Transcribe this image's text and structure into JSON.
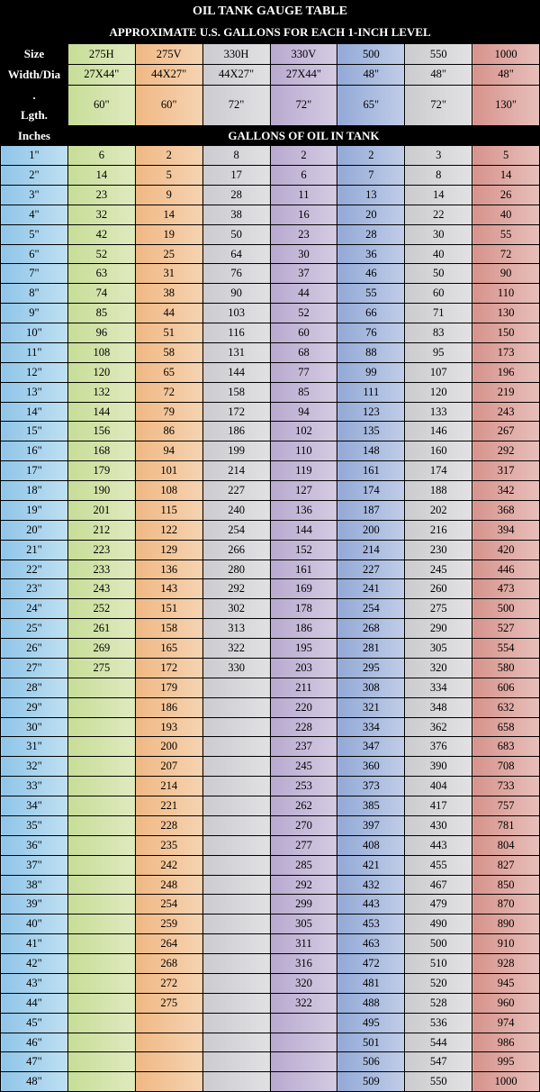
{
  "title": "OIL TANK GAUGE TABLE",
  "subtitle": "APPROXIMATE U.S. GALLONS FOR EACH 1-INCH LEVEL",
  "mid_header": "GALLONS OF OIL IN TANK",
  "row_headers": {
    "size": "Size",
    "width": "Width/Dia",
    "dot": ".",
    "length": "Lgth.",
    "inches": "Inches"
  },
  "columns": [
    {
      "name": "275H",
      "width": "27X44\"",
      "length": "60\"",
      "color_class": "c1"
    },
    {
      "name": "275V",
      "width": "44X27\"",
      "length": "60\"",
      "color_class": "c2"
    },
    {
      "name": "330H",
      "width": "44X27\"",
      "length": "72\"",
      "color_class": "c3"
    },
    {
      "name": "330V",
      "width": "27X44\"",
      "length": "72\"",
      "color_class": "c4"
    },
    {
      "name": "500",
      "width": "48\"",
      "length": "65\"",
      "color_class": "c5"
    },
    {
      "name": "550",
      "width": "48\"",
      "length": "72\"",
      "color_class": "c6"
    },
    {
      "name": "1000",
      "width": "48\"",
      "length": "130\"",
      "color_class": "c7"
    }
  ],
  "rows": [
    {
      "label": "1\"",
      "v": [
        "6",
        "2",
        "8",
        "2",
        "2",
        "3",
        "5"
      ]
    },
    {
      "label": "2\"",
      "v": [
        "14",
        "5",
        "17",
        "6",
        "7",
        "8",
        "14"
      ]
    },
    {
      "label": "3\"",
      "v": [
        "23",
        "9",
        "28",
        "11",
        "13",
        "14",
        "26"
      ]
    },
    {
      "label": "4\"",
      "v": [
        "32",
        "14",
        "38",
        "16",
        "20",
        "22",
        "40"
      ]
    },
    {
      "label": "5\"",
      "v": [
        "42",
        "19",
        "50",
        "23",
        "28",
        "30",
        "55"
      ]
    },
    {
      "label": "6\"",
      "v": [
        "52",
        "25",
        "64",
        "30",
        "36",
        "40",
        "72"
      ]
    },
    {
      "label": "7\"",
      "v": [
        "63",
        "31",
        "76",
        "37",
        "46",
        "50",
        "90"
      ]
    },
    {
      "label": "8\"",
      "v": [
        "74",
        "38",
        "90",
        "44",
        "55",
        "60",
        "110"
      ]
    },
    {
      "label": "9\"",
      "v": [
        "85",
        "44",
        "103",
        "52",
        "66",
        "71",
        "130"
      ]
    },
    {
      "label": "10\"",
      "v": [
        "96",
        "51",
        "116",
        "60",
        "76",
        "83",
        "150"
      ]
    },
    {
      "label": "11\"",
      "v": [
        "108",
        "58",
        "131",
        "68",
        "88",
        "95",
        "173"
      ]
    },
    {
      "label": "12\"",
      "v": [
        "120",
        "65",
        "144",
        "77",
        "99",
        "107",
        "196"
      ]
    },
    {
      "label": "13\"",
      "v": [
        "132",
        "72",
        "158",
        "85",
        "111",
        "120",
        "219"
      ]
    },
    {
      "label": "14\"",
      "v": [
        "144",
        "79",
        "172",
        "94",
        "123",
        "133",
        "243"
      ]
    },
    {
      "label": "15\"",
      "v": [
        "156",
        "86",
        "186",
        "102",
        "135",
        "146",
        "267"
      ]
    },
    {
      "label": "16\"",
      "v": [
        "168",
        "94",
        "199",
        "110",
        "148",
        "160",
        "292"
      ]
    },
    {
      "label": "17\"",
      "v": [
        "179",
        "101",
        "214",
        "119",
        "161",
        "174",
        "317"
      ]
    },
    {
      "label": "18\"",
      "v": [
        "190",
        "108",
        "227",
        "127",
        "174",
        "188",
        "342"
      ]
    },
    {
      "label": "19\"",
      "v": [
        "201",
        "115",
        "240",
        "136",
        "187",
        "202",
        "368"
      ]
    },
    {
      "label": "20\"",
      "v": [
        "212",
        "122",
        "254",
        "144",
        "200",
        "216",
        "394"
      ]
    },
    {
      "label": "21\"",
      "v": [
        "223",
        "129",
        "266",
        "152",
        "214",
        "230",
        "420"
      ]
    },
    {
      "label": "22\"",
      "v": [
        "233",
        "136",
        "280",
        "161",
        "227",
        "245",
        "446"
      ]
    },
    {
      "label": "23\"",
      "v": [
        "243",
        "143",
        "292",
        "169",
        "241",
        "260",
        "473"
      ]
    },
    {
      "label": "24\"",
      "v": [
        "252",
        "151",
        "302",
        "178",
        "254",
        "275",
        "500"
      ]
    },
    {
      "label": "25\"",
      "v": [
        "261",
        "158",
        "313",
        "186",
        "268",
        "290",
        "527"
      ]
    },
    {
      "label": "26\"",
      "v": [
        "269",
        "165",
        "322",
        "195",
        "281",
        "305",
        "554"
      ]
    },
    {
      "label": "27\"",
      "v": [
        "275",
        "172",
        "330",
        "203",
        "295",
        "320",
        "580"
      ]
    },
    {
      "label": "28\"",
      "v": [
        "",
        "179",
        "",
        "211",
        "308",
        "334",
        "606"
      ]
    },
    {
      "label": "29\"",
      "v": [
        "",
        "186",
        "",
        "220",
        "321",
        "348",
        "632"
      ]
    },
    {
      "label": "30\"",
      "v": [
        "",
        "193",
        "",
        "228",
        "334",
        "362",
        "658"
      ]
    },
    {
      "label": "31\"",
      "v": [
        "",
        "200",
        "",
        "237",
        "347",
        "376",
        "683"
      ]
    },
    {
      "label": "32\"",
      "v": [
        "",
        "207",
        "",
        "245",
        "360",
        "390",
        "708"
      ]
    },
    {
      "label": "33\"",
      "v": [
        "",
        "214",
        "",
        "253",
        "373",
        "404",
        "733"
      ]
    },
    {
      "label": "34\"",
      "v": [
        "",
        "221",
        "",
        "262",
        "385",
        "417",
        "757"
      ]
    },
    {
      "label": "35\"",
      "v": [
        "",
        "228",
        "",
        "270",
        "397",
        "430",
        "781"
      ]
    },
    {
      "label": "36\"",
      "v": [
        "",
        "235",
        "",
        "277",
        "408",
        "443",
        "804"
      ]
    },
    {
      "label": "37\"",
      "v": [
        "",
        "242",
        "",
        "285",
        "421",
        "455",
        "827"
      ]
    },
    {
      "label": "38\"",
      "v": [
        "",
        "248",
        "",
        "292",
        "432",
        "467",
        "850"
      ]
    },
    {
      "label": "39\"",
      "v": [
        "",
        "254",
        "",
        "299",
        "443",
        "479",
        "870"
      ]
    },
    {
      "label": "40\"",
      "v": [
        "",
        "259",
        "",
        "305",
        "453",
        "490",
        "890"
      ]
    },
    {
      "label": "41\"",
      "v": [
        "",
        "264",
        "",
        "311",
        "463",
        "500",
        "910"
      ]
    },
    {
      "label": "42\"",
      "v": [
        "",
        "268",
        "",
        "316",
        "472",
        "510",
        "928"
      ]
    },
    {
      "label": "43\"",
      "v": [
        "",
        "272",
        "",
        "320",
        "481",
        "520",
        "945"
      ]
    },
    {
      "label": "44\"",
      "v": [
        "",
        "275",
        "",
        "322",
        "488",
        "528",
        "960"
      ]
    },
    {
      "label": "45\"",
      "v": [
        "",
        "",
        "",
        "",
        "495",
        "536",
        "974"
      ]
    },
    {
      "label": "46\"",
      "v": [
        "",
        "",
        "",
        "",
        "501",
        "544",
        "986"
      ]
    },
    {
      "label": "47\"",
      "v": [
        "",
        "",
        "",
        "",
        "506",
        "547",
        "995"
      ]
    },
    {
      "label": "48\"",
      "v": [
        "",
        "",
        "",
        "",
        "509",
        "550",
        "1000"
      ]
    }
  ],
  "style": {
    "font_family": "Times New Roman",
    "cell_font_size": 12.5,
    "title_font_size": 14,
    "background": "#000000",
    "border_color": "#000000",
    "col_gradients": {
      "c0": [
        "#8fc5e8",
        "#bfe0f2"
      ],
      "c1": [
        "#c7dd97",
        "#dfeabf"
      ],
      "c2": [
        "#f0b884",
        "#f5d3b1"
      ],
      "c3": [
        "#cbcbd0",
        "#e1e1e4"
      ],
      "c4": [
        "#b8a9cf",
        "#d4cbe2"
      ],
      "c5": [
        "#93a9d6",
        "#c0cde8"
      ],
      "c6": [
        "#cccccf",
        "#e2e2e4"
      ],
      "c7": [
        "#d6938c",
        "#e8bfba"
      ]
    }
  }
}
